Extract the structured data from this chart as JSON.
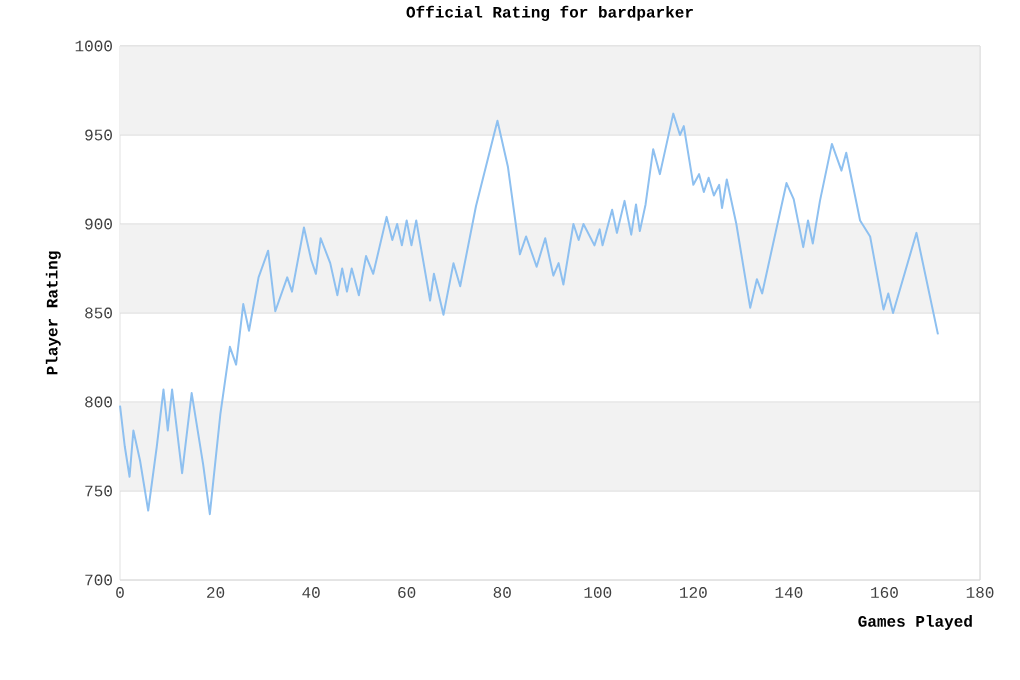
{
  "chart_data": {
    "type": "line",
    "title": "Official Rating for bardparker",
    "xlabel": "Games Played",
    "ylabel": "Player Rating",
    "xlim": [
      0,
      180
    ],
    "xticks": [
      0,
      20,
      40,
      60,
      80,
      100,
      120,
      140,
      160,
      180
    ],
    "ylim": [
      700,
      1000
    ],
    "yticks": [
      700,
      750,
      800,
      850,
      900,
      950,
      1000
    ],
    "grid": "y",
    "marker": "none",
    "line_style": "solid",
    "series": [
      {
        "color": "#8ec0f0",
        "x": [
          0,
          1,
          2,
          2.8,
          4.2,
          5.9,
          7.7,
          9.1,
          10,
          10.9,
          13,
          15,
          17.4,
          18.8,
          21,
          23,
          24.3,
          25.8,
          27,
          29,
          31,
          32.5,
          35,
          36,
          38.5,
          40,
          41,
          42,
          44,
          45.5,
          46.5,
          47.5,
          48.5,
          50,
          51.5,
          53,
          55.8,
          57,
          58,
          59,
          60,
          61,
          62,
          64.9,
          65.7,
          67.7,
          69.8,
          71.2,
          74.5,
          79,
          81.2,
          83.7,
          85,
          87.2,
          89,
          90.7,
          91.8,
          92.8,
          94.9,
          96,
          97,
          99.3,
          100.4,
          101,
          103,
          104,
          105.6,
          107,
          108,
          108.8,
          110,
          111.6,
          113,
          115.8,
          117.2,
          118,
          120,
          121.2,
          122.2,
          123.2,
          124.3,
          125.4,
          126,
          127,
          129,
          131.9,
          133.3,
          134.4,
          139.5,
          141,
          143,
          144,
          145,
          146.5,
          149,
          151,
          152,
          154.9,
          157,
          159.8,
          160.8,
          161.8,
          166.7,
          171.2
        ],
        "values": [
          798,
          775,
          758,
          784,
          767,
          739,
          775,
          807,
          784,
          807,
          760,
          805,
          765,
          737,
          793,
          831,
          821,
          855,
          840,
          870,
          885,
          851,
          870,
          862,
          898,
          880,
          872,
          892,
          878,
          860,
          875,
          862,
          875,
          860,
          882,
          872,
          904,
          891,
          900,
          888,
          902,
          888,
          902,
          857,
          872,
          849,
          878,
          865,
          910,
          958,
          932,
          883,
          893,
          876,
          892,
          871,
          878,
          866,
          900,
          891,
          900,
          888,
          897,
          888,
          908,
          895,
          913,
          894,
          911,
          896,
          911,
          942,
          928,
          962,
          950,
          955,
          922,
          928,
          918,
          926,
          916,
          922,
          909,
          925,
          900,
          853,
          869,
          861,
          923,
          914,
          887,
          902,
          889,
          913,
          945,
          930,
          940,
          902,
          893,
          852,
          861,
          850,
          895,
          838
        ]
      }
    ]
  }
}
